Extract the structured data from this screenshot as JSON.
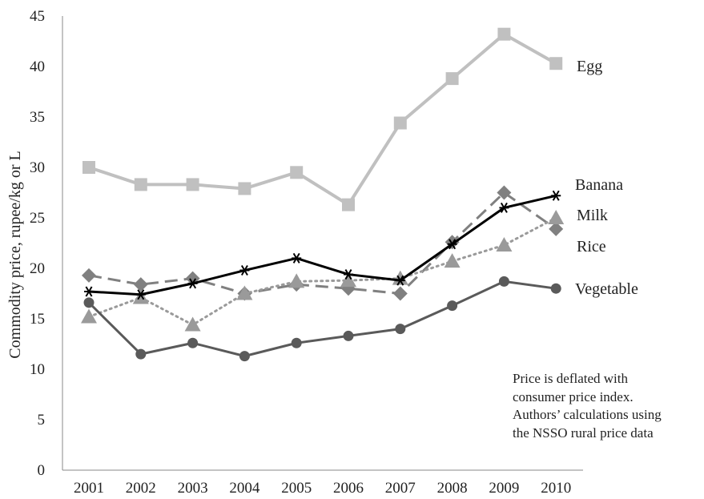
{
  "chart_data": {
    "type": "line",
    "x": [
      "2001",
      "2002",
      "2003",
      "2004",
      "2005",
      "2006",
      "2007",
      "2008",
      "2009",
      "2010"
    ],
    "ylabel": "Commodity price, rupee/kg or L",
    "xlabel": "",
    "ylim": [
      0,
      45
    ],
    "yticks": [
      "0",
      "5",
      "10",
      "15",
      "20",
      "25",
      "30",
      "35",
      "40",
      "45"
    ],
    "grid": false,
    "legend": "labels at line ends",
    "series": [
      {
        "name": "Egg",
        "values": [
          30.0,
          28.3,
          28.3,
          27.9,
          29.5,
          26.3,
          34.4,
          38.8,
          43.2,
          40.3
        ],
        "color": "#c0c0c0",
        "marker": "square",
        "dash": "solid",
        "width": 4
      },
      {
        "name": "Banana",
        "values": [
          17.7,
          17.4,
          18.5,
          19.8,
          21.0,
          19.4,
          18.8,
          22.4,
          26.0,
          27.2
        ],
        "color": "#000000",
        "marker": "star",
        "dash": "solid",
        "width": 3
      },
      {
        "name": "Milk",
        "values": [
          15.2,
          17.1,
          14.4,
          17.5,
          18.7,
          18.8,
          19.0,
          20.7,
          22.3,
          25.0
        ],
        "color": "#9a9a9a",
        "marker": "triangle",
        "dash": "dotted",
        "width": 3
      },
      {
        "name": "Rice",
        "values": [
          19.3,
          18.4,
          19.0,
          17.5,
          18.4,
          18.0,
          17.5,
          22.6,
          27.5,
          23.9
        ],
        "color": "#808080",
        "marker": "diamond",
        "dash": "dashed",
        "width": 3
      },
      {
        "name": "Vegetable",
        "values": [
          16.6,
          11.5,
          12.6,
          11.3,
          12.6,
          13.3,
          14.0,
          16.3,
          18.7,
          18.0
        ],
        "color": "#5a5a5a",
        "marker": "circle",
        "dash": "solid",
        "width": 3
      }
    ]
  },
  "note": {
    "lines": [
      "Price is deflated with",
      "consumer price index.",
      "Authors’ calculations using",
      "the NSSO rural price data"
    ]
  }
}
